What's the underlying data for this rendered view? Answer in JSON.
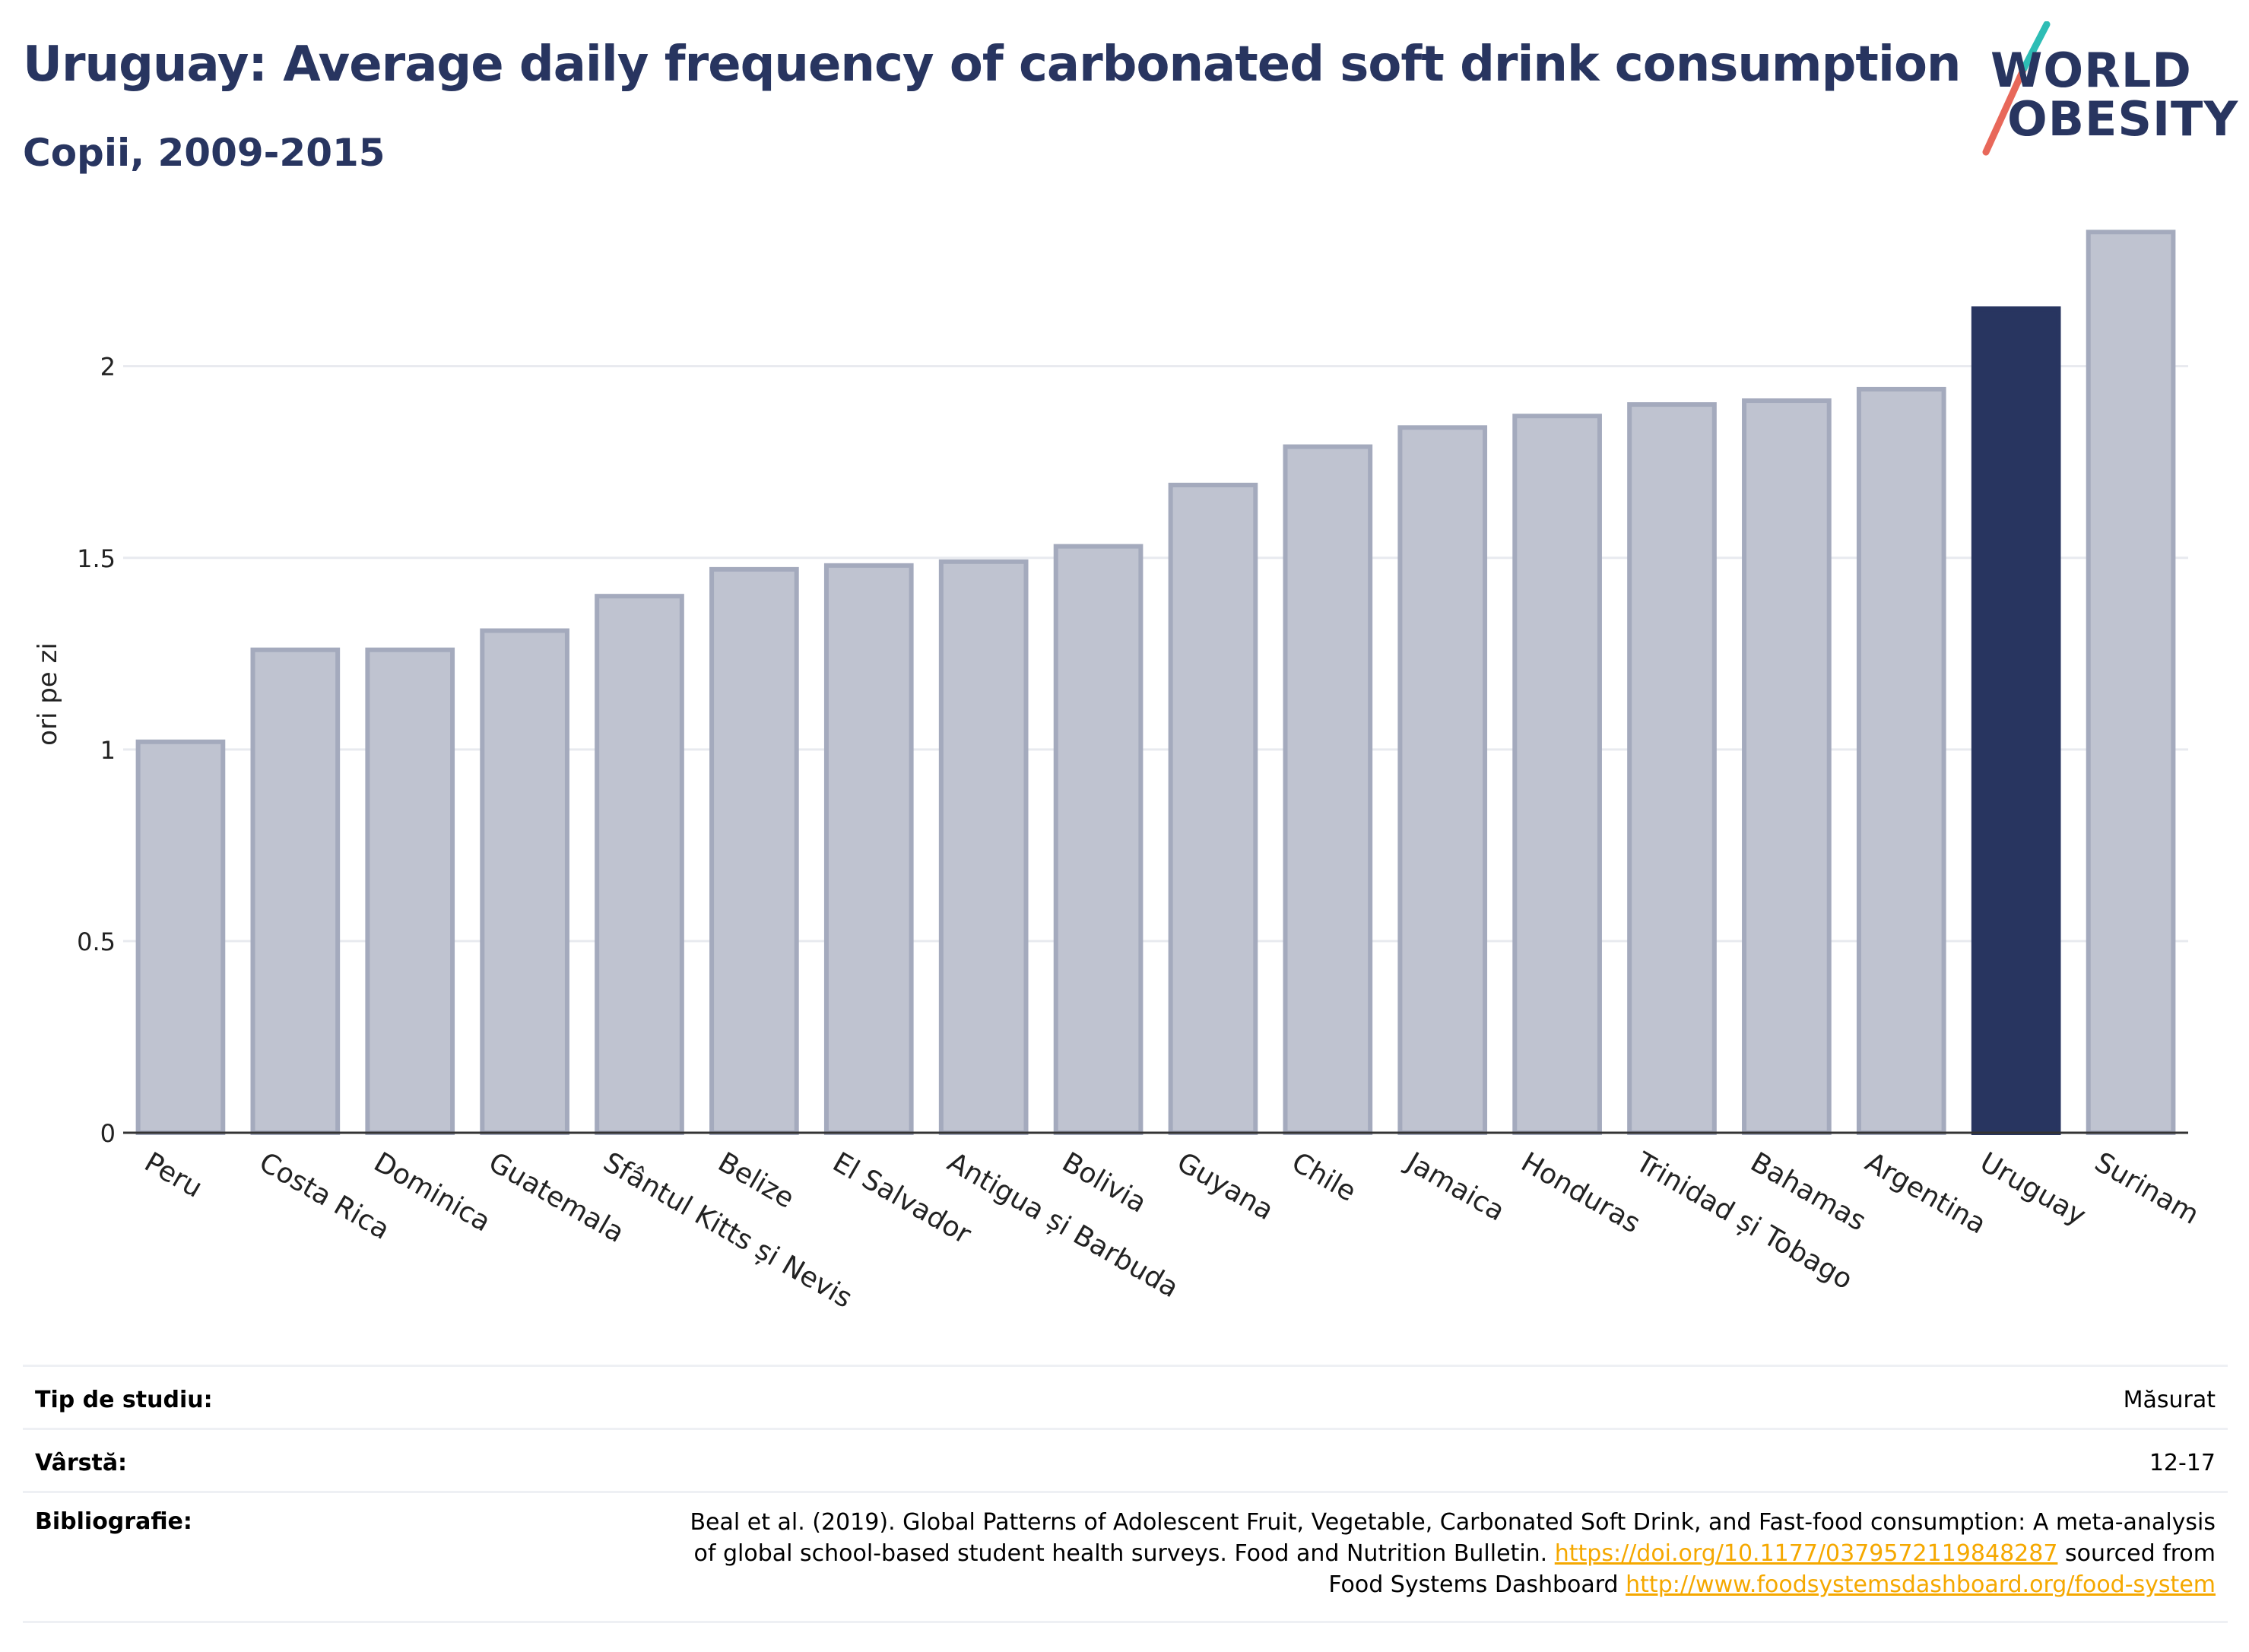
{
  "header": {
    "title": "Uruguay: Average daily frequency of carbonated soft drink consumption",
    "subtitle": "Copii, 2009-2015"
  },
  "logo": {
    "line1": "WORLD",
    "line2": "OBESITY"
  },
  "colors": {
    "highlight": "#283560",
    "bar_fill": "#bfc3d0",
    "bar_stroke": "#a4aabd",
    "grid": "#e8eaef",
    "link": "#f5a800"
  },
  "chart_data": {
    "type": "bar",
    "ylabel": "ori pe zi",
    "xlabel": "",
    "ylim": [
      0,
      2.4
    ],
    "yticks": [
      0,
      0.5,
      1,
      1.5,
      2
    ],
    "ytick_labels": [
      "0",
      "0.5",
      "1",
      "1.5",
      "2"
    ],
    "highlight": "Uruguay",
    "grid": true,
    "categories": [
      "Peru",
      "Costa Rica",
      "Dominica",
      "Guatemala",
      "Sfântul Kitts și Nevis",
      "Belize",
      "El Salvador",
      "Antigua și Barbuda",
      "Bolivia",
      "Guyana",
      "Chile",
      "Jamaica",
      "Honduras",
      "Trinidad și Tobago",
      "Bahamas",
      "Argentina",
      "Uruguay",
      "Surinam"
    ],
    "values": [
      1.02,
      1.26,
      1.26,
      1.31,
      1.4,
      1.47,
      1.48,
      1.49,
      1.53,
      1.69,
      1.79,
      1.84,
      1.87,
      1.9,
      1.91,
      1.94,
      2.15,
      2.35
    ]
  },
  "info": {
    "study_type_label": "Tip de studiu:",
    "study_type_value": "Măsurat",
    "age_label": "Vârstă:",
    "age_value": "12-17",
    "bib_label": "Bibliografie:",
    "bib_text_1": "Beal et al. (2019). Global Patterns of Adolescent Fruit, Vegetable, Carbonated Soft Drink, and Fast-food consumption: A meta-analysis",
    "bib_text_2a": "of global school-based student health surveys. Food and Nutrition Bulletin.",
    "bib_link_1": "https://doi.org/10.1177/0379572119848287",
    "bib_text_2b": "sourced from",
    "bib_text_3": "Food Systems Dashboard",
    "bib_link_2": "http://www.foodsystemsdashboard.org/food-system"
  }
}
